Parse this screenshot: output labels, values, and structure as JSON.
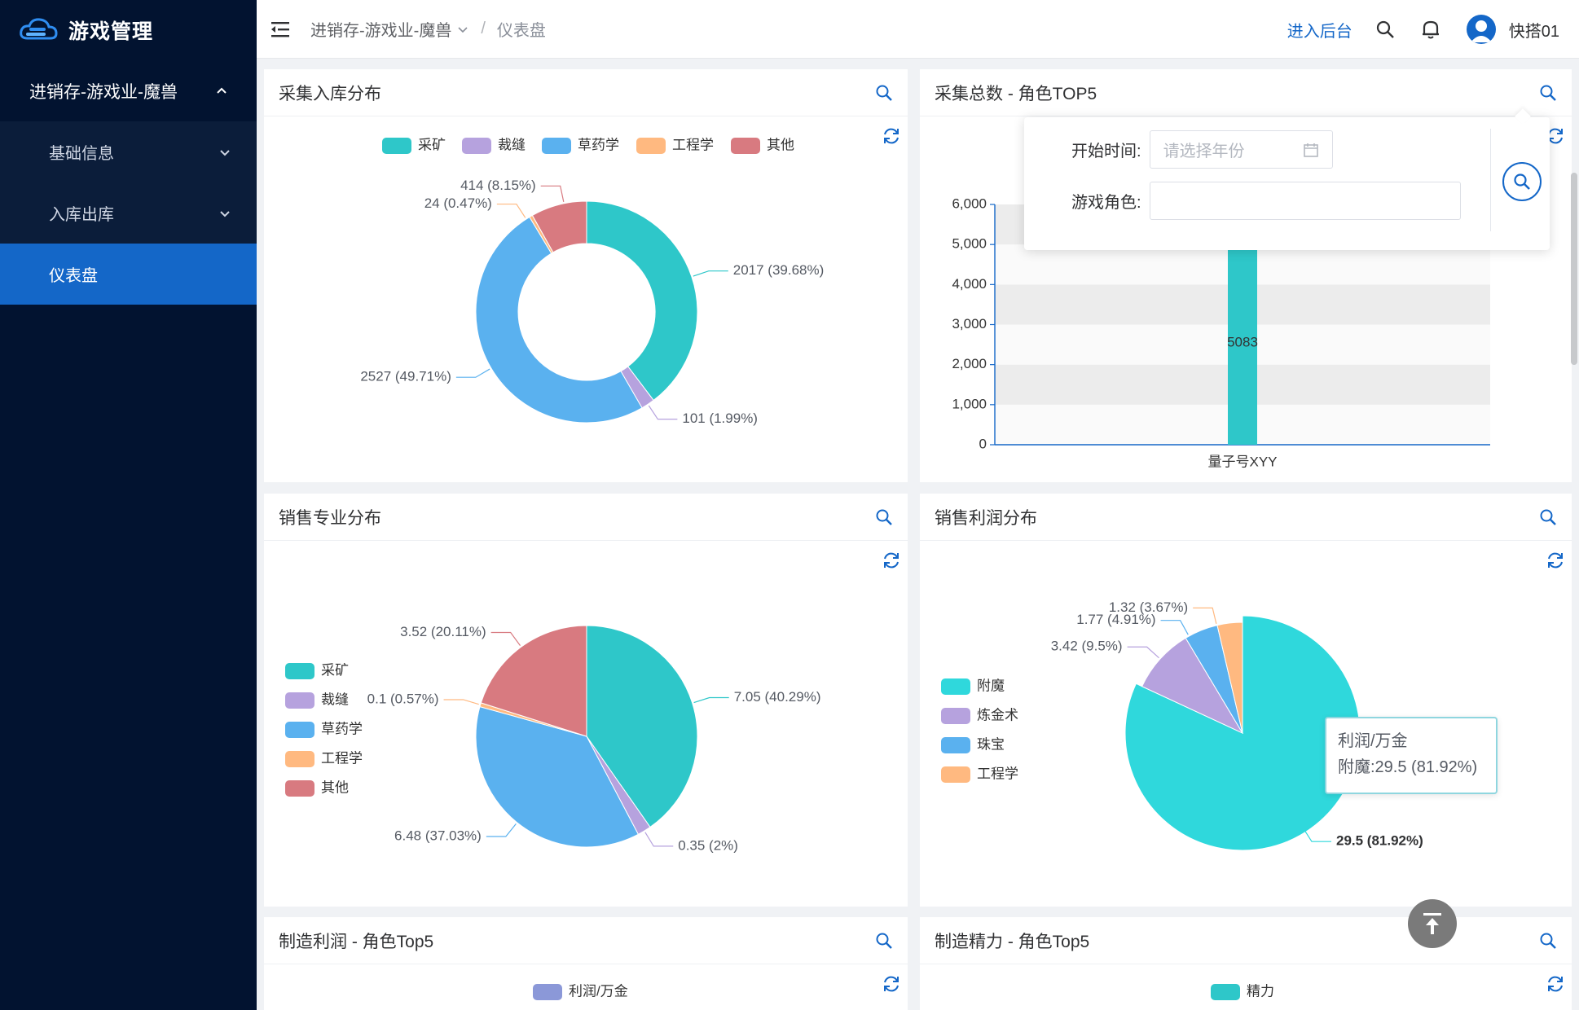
{
  "app": {
    "title": "游戏管理"
  },
  "sidebar": {
    "group": {
      "label": "进销存-游戏业-魔兽"
    },
    "items": [
      {
        "label": "基础信息"
      },
      {
        "label": "入库出库"
      },
      {
        "label": "仪表盘"
      }
    ]
  },
  "header": {
    "breadcrumb": [
      "进销存-游戏业-魔兽",
      "仪表盘"
    ],
    "enter_admin": "进入后台",
    "username": "快搭01"
  },
  "cards": {
    "c1": {
      "title": "采集入库分布"
    },
    "c2": {
      "title": "采集总数 - 角色TOP5"
    },
    "c3": {
      "title": "销售专业分布"
    },
    "c4": {
      "title": "销售利润分布"
    },
    "c5": {
      "title": "制造利润 - 角色Top5"
    },
    "c6": {
      "title": "制造精力 - 角色Top5"
    }
  },
  "popover": {
    "start_label": "开始时间:",
    "start_placeholder": "请选择年份",
    "role_label": "游戏角色:",
    "role_value": ""
  },
  "tooltip": {
    "title": "利润/万金",
    "line": "附魔:29.5 (81.92%)"
  },
  "colors": {
    "sidebar_bg": "#021330",
    "active": "#1467c8",
    "teal": "#2ec7c9",
    "purple": "#b6a2de",
    "blue": "#5ab1ef",
    "orange": "#ffb980",
    "red": "#d87a80",
    "cyan": "#2fd8dc"
  },
  "chart_data": [
    {
      "type": "pie",
      "variant": "donut",
      "legend": [
        "采矿",
        "裁缝",
        "草药学",
        "工程学",
        "其他"
      ],
      "legend_position": "top",
      "slices": [
        {
          "name": "采矿",
          "value": 2017,
          "label": "2017 (39.68%)"
        },
        {
          "name": "裁缝",
          "value": 101,
          "label": "101 (1.99%)"
        },
        {
          "name": "草药学",
          "value": 2527,
          "label": "2527 (49.71%)"
        },
        {
          "name": "工程学",
          "value": 24,
          "label": "24 (0.47%)"
        },
        {
          "name": "其他",
          "value": 414,
          "label": "414 (8.15%)"
        }
      ]
    },
    {
      "type": "bar",
      "categories": [
        "量子号XYY"
      ],
      "values": [
        5083
      ],
      "value_label": "5083",
      "ylim": [
        0,
        6000
      ],
      "yticks": [
        "0",
        "1,000",
        "2,000",
        "3,000",
        "4,000",
        "5,000",
        "6,000"
      ]
    },
    {
      "type": "pie",
      "legend": [
        "采矿",
        "裁缝",
        "草药学",
        "工程学",
        "其他"
      ],
      "legend_position": "left",
      "slices": [
        {
          "name": "采矿",
          "value": 7.05,
          "label": "7.05 (40.29%)"
        },
        {
          "name": "裁缝",
          "value": 0.35,
          "label": "0.35 (2%)"
        },
        {
          "name": "草药学",
          "value": 6.48,
          "label": "6.48 (37.03%)"
        },
        {
          "name": "工程学",
          "value": 0.1,
          "label": "0.1 (0.57%)"
        },
        {
          "name": "其他",
          "value": 3.52,
          "label": "3.52 (20.11%)"
        }
      ]
    },
    {
      "type": "pie",
      "legend": [
        "附魔",
        "炼金术",
        "珠宝",
        "工程学"
      ],
      "legend_position": "left",
      "slices": [
        {
          "name": "附魔",
          "value": 29.5,
          "label": "29.5 (81.92%)"
        },
        {
          "name": "炼金术",
          "value": 3.42,
          "label": "3.42 (9.5%)"
        },
        {
          "name": "珠宝",
          "value": 1.77,
          "label": "1.77 (4.91%)"
        },
        {
          "name": "工程学",
          "value": 1.32,
          "label": "1.32 (3.67%)"
        }
      ]
    },
    {
      "type": "bar",
      "legend": [
        "利润/万金"
      ]
    },
    {
      "type": "bar",
      "legend": [
        "精力"
      ]
    }
  ]
}
